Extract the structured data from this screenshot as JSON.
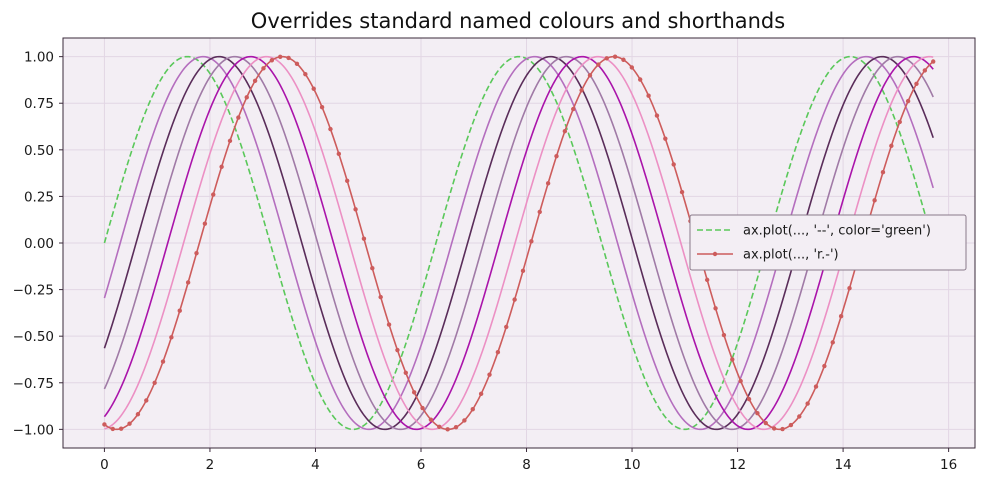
{
  "chart_data": {
    "type": "line",
    "title": "Overrides standard named colours and shorthands",
    "xlabel": "",
    "ylabel": "",
    "xlim": [
      -0.785,
      16.5
    ],
    "ylim": [
      -1.1,
      1.1
    ],
    "x_ticks": [
      0,
      2,
      4,
      6,
      8,
      10,
      12,
      14,
      16
    ],
    "x_tick_labels": [
      "0",
      "2",
      "4",
      "6",
      "8",
      "10",
      "12",
      "14",
      "16"
    ],
    "y_ticks": [
      1.0,
      0.75,
      0.5,
      0.25,
      0.0,
      -0.25,
      -0.5,
      -0.75,
      -1.0
    ],
    "y_tick_labels": [
      "1.00",
      "0.75",
      "0.50",
      "0.25",
      "0.00",
      "−0.25",
      "−0.50",
      "−0.75",
      "−1.00"
    ],
    "grid": true,
    "legend_position": "center-right",
    "colors": {
      "background": "#f3eef4",
      "grid": "#e2d6e4",
      "axes": "#3a2a3a"
    },
    "x_range": [
      0,
      15.708
    ],
    "series": [
      {
        "function": "sin(x + 0.0)",
        "phase": 0.0,
        "color": "#5ac85a",
        "style": "dashed",
        "marker": false,
        "legend_label": "ax.plot(..., '--', color='green')"
      },
      {
        "function": "sin(x - 0.3)",
        "phase": -0.3,
        "color": "#b46ebe",
        "style": "solid",
        "marker": false
      },
      {
        "function": "sin(x - 0.6)",
        "phase": -0.6,
        "color": "#5a2d5a",
        "style": "solid",
        "marker": false
      },
      {
        "function": "sin(x - 0.9)",
        "phase": -0.9,
        "color": "#a07aa6",
        "style": "solid",
        "marker": false
      },
      {
        "function": "sin(x - 1.2)",
        "phase": -1.2,
        "color": "#aa14aa",
        "style": "solid",
        "marker": false
      },
      {
        "function": "sin(x - 1.5)",
        "phase": -1.5,
        "color": "#ec90c4",
        "style": "solid",
        "marker": false
      },
      {
        "function": "sin(x - 1.8)",
        "phase": -1.8,
        "color": "#cd5c5c",
        "style": "solid",
        "marker": true,
        "legend_label": "ax.plot(..., 'r.-')"
      }
    ],
    "legend": [
      {
        "label": "ax.plot(..., '--', color='green')",
        "color": "#5ac85a",
        "style": "dashed",
        "marker": false
      },
      {
        "label": "ax.plot(..., 'r.-')",
        "color": "#cd5c5c",
        "style": "solid",
        "marker": true
      }
    ]
  }
}
